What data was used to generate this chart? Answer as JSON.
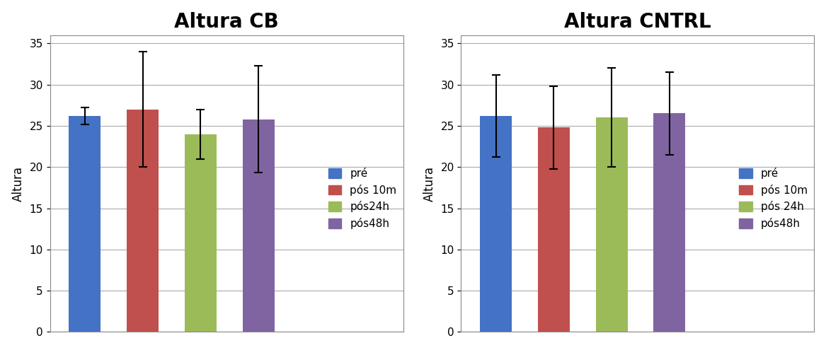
{
  "cb": {
    "title": "Altura CB",
    "values": [
      26.2,
      27.0,
      24.0,
      25.8
    ],
    "errors": [
      1.0,
      7.0,
      3.0,
      6.5
    ],
    "ylabel": "Altura",
    "legend_labels": [
      "pré",
      "pós 10m",
      "pós24h",
      "pós48h"
    ]
  },
  "cntrl": {
    "title": "Altura CNTRL",
    "values": [
      26.2,
      24.8,
      26.0,
      26.5
    ],
    "errors": [
      5.0,
      5.0,
      6.0,
      5.0
    ],
    "ylabel": "Altura",
    "legend_labels": [
      "pré",
      "pós 10m",
      "pós 24h",
      "pós48h"
    ]
  },
  "bar_colors": [
    "#4472C4",
    "#C0504D",
    "#9BBB59",
    "#8064A2"
  ],
  "ylim": [
    0,
    36
  ],
  "yticks": [
    0,
    5,
    10,
    15,
    20,
    25,
    30,
    35
  ],
  "title_fontsize": 20,
  "axis_label_fontsize": 12,
  "tick_fontsize": 11,
  "legend_fontsize": 11,
  "bar_width": 0.55,
  "background_color": "#ffffff",
  "panel_background": "#f0f0f0",
  "grid_color": "#aaaaaa"
}
